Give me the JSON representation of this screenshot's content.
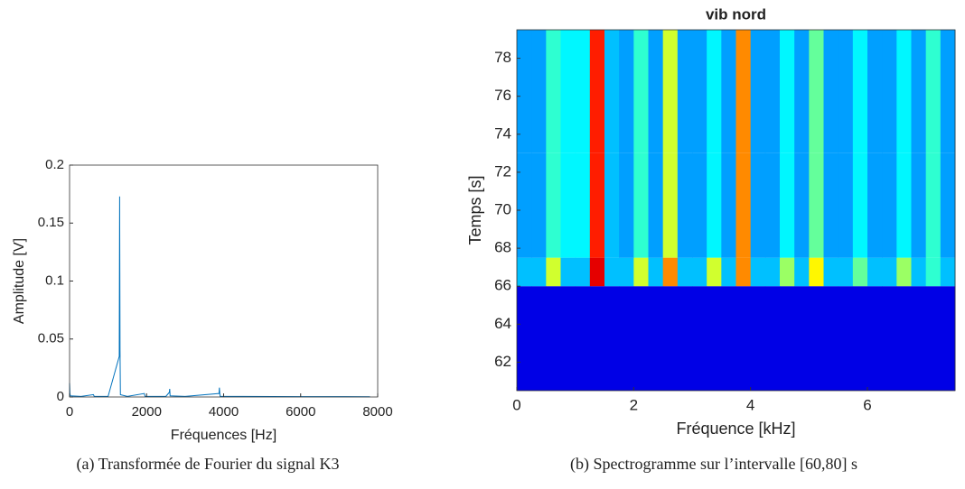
{
  "chart_data": [
    {
      "type": "line",
      "caption": "(a) Transformée de Fourier du signal K3",
      "x_label": "Fréquences [Hz]",
      "y_label": "Amplitude [V]",
      "x": [
        0,
        10,
        20,
        300,
        620,
        640,
        1000,
        1290,
        1300,
        1310,
        1320,
        1500,
        1940,
        1960,
        2500,
        2590,
        2600,
        2610,
        3000,
        3880,
        3890,
        3900,
        3910,
        4500,
        6000,
        7000,
        7800
      ],
      "values": [
        0.012,
        0.003,
        0.001,
        0.0005,
        0.002,
        0.0005,
        0.0005,
        0.035,
        0.173,
        0.04,
        0.002,
        0.0005,
        0.003,
        0.0005,
        0.0005,
        0.004,
        0.007,
        0.001,
        0.0005,
        0.003,
        0.008,
        0.003,
        0.0005,
        0.0005,
        0.0003,
        0.0003,
        0.0002
      ],
      "color": "#0072bd",
      "xlim": [
        0,
        8000
      ],
      "xticks": [
        0,
        2000,
        4000,
        6000,
        8000
      ],
      "ylim": [
        0,
        0.2
      ],
      "yticks": [
        0,
        0.05,
        0.1,
        0.15,
        0.2
      ]
    },
    {
      "type": "heatmap",
      "title": "vib nord",
      "caption": "(b) Spectrogramme sur l’intervalle [60,80] s",
      "x_label": "Fréquence [kHz]",
      "y_label": "Temps [s]",
      "xbins": [
        0,
        0.25,
        0.5,
        0.75,
        1,
        1.25,
        1.5,
        1.75,
        2,
        2.25,
        2.5,
        2.75,
        3,
        3.25,
        3.5,
        3.75,
        4,
        4.25,
        4.5,
        4.75,
        5,
        5.25,
        5.5,
        5.75,
        6,
        6.25,
        6.5,
        6.75,
        7,
        7.25,
        7.5
      ],
      "ybins": [
        60.5,
        66,
        67.5,
        73,
        79.5
      ],
      "values": [
        [
          0.25,
          0.25,
          0.25,
          0.25,
          0.25,
          0.25,
          0.25,
          0.25,
          0.25,
          0.25,
          0.25,
          0.25,
          0.25,
          0.25,
          0.25,
          0.25,
          0.25,
          0.25,
          0.25,
          0.25,
          0.25,
          0.25,
          0.25,
          0.25,
          0.25,
          0.25,
          0.25,
          0.25,
          0.25,
          0.25
        ],
        [
          0.45,
          0.45,
          0.7,
          0.45,
          0.45,
          1.0,
          0.45,
          0.45,
          0.7,
          0.45,
          0.85,
          0.45,
          0.45,
          0.7,
          0.45,
          0.85,
          0.45,
          0.45,
          0.65,
          0.45,
          0.75,
          0.45,
          0.45,
          0.6,
          0.45,
          0.45,
          0.65,
          0.45,
          0.55,
          0.45
        ],
        [
          0.42,
          0.42,
          0.55,
          0.5,
          0.5,
          0.95,
          0.45,
          0.42,
          0.55,
          0.42,
          0.7,
          0.42,
          0.42,
          0.5,
          0.42,
          0.85,
          0.42,
          0.42,
          0.5,
          0.42,
          0.6,
          0.42,
          0.42,
          0.5,
          0.42,
          0.42,
          0.5,
          0.42,
          0.55,
          0.42
        ],
        [
          0.42,
          0.42,
          0.55,
          0.5,
          0.5,
          0.95,
          0.45,
          0.42,
          0.55,
          0.42,
          0.7,
          0.42,
          0.42,
          0.5,
          0.42,
          0.85,
          0.42,
          0.42,
          0.5,
          0.42,
          0.6,
          0.42,
          0.42,
          0.5,
          0.42,
          0.42,
          0.5,
          0.42,
          0.55,
          0.42
        ]
      ],
      "xlim": [
        0,
        7.5
      ],
      "xticks": [
        0,
        2,
        4,
        6
      ],
      "ylim": [
        60.5,
        79.5
      ],
      "yticks": [
        62,
        64,
        66,
        68,
        70,
        72,
        74,
        76,
        78
      ]
    }
  ]
}
